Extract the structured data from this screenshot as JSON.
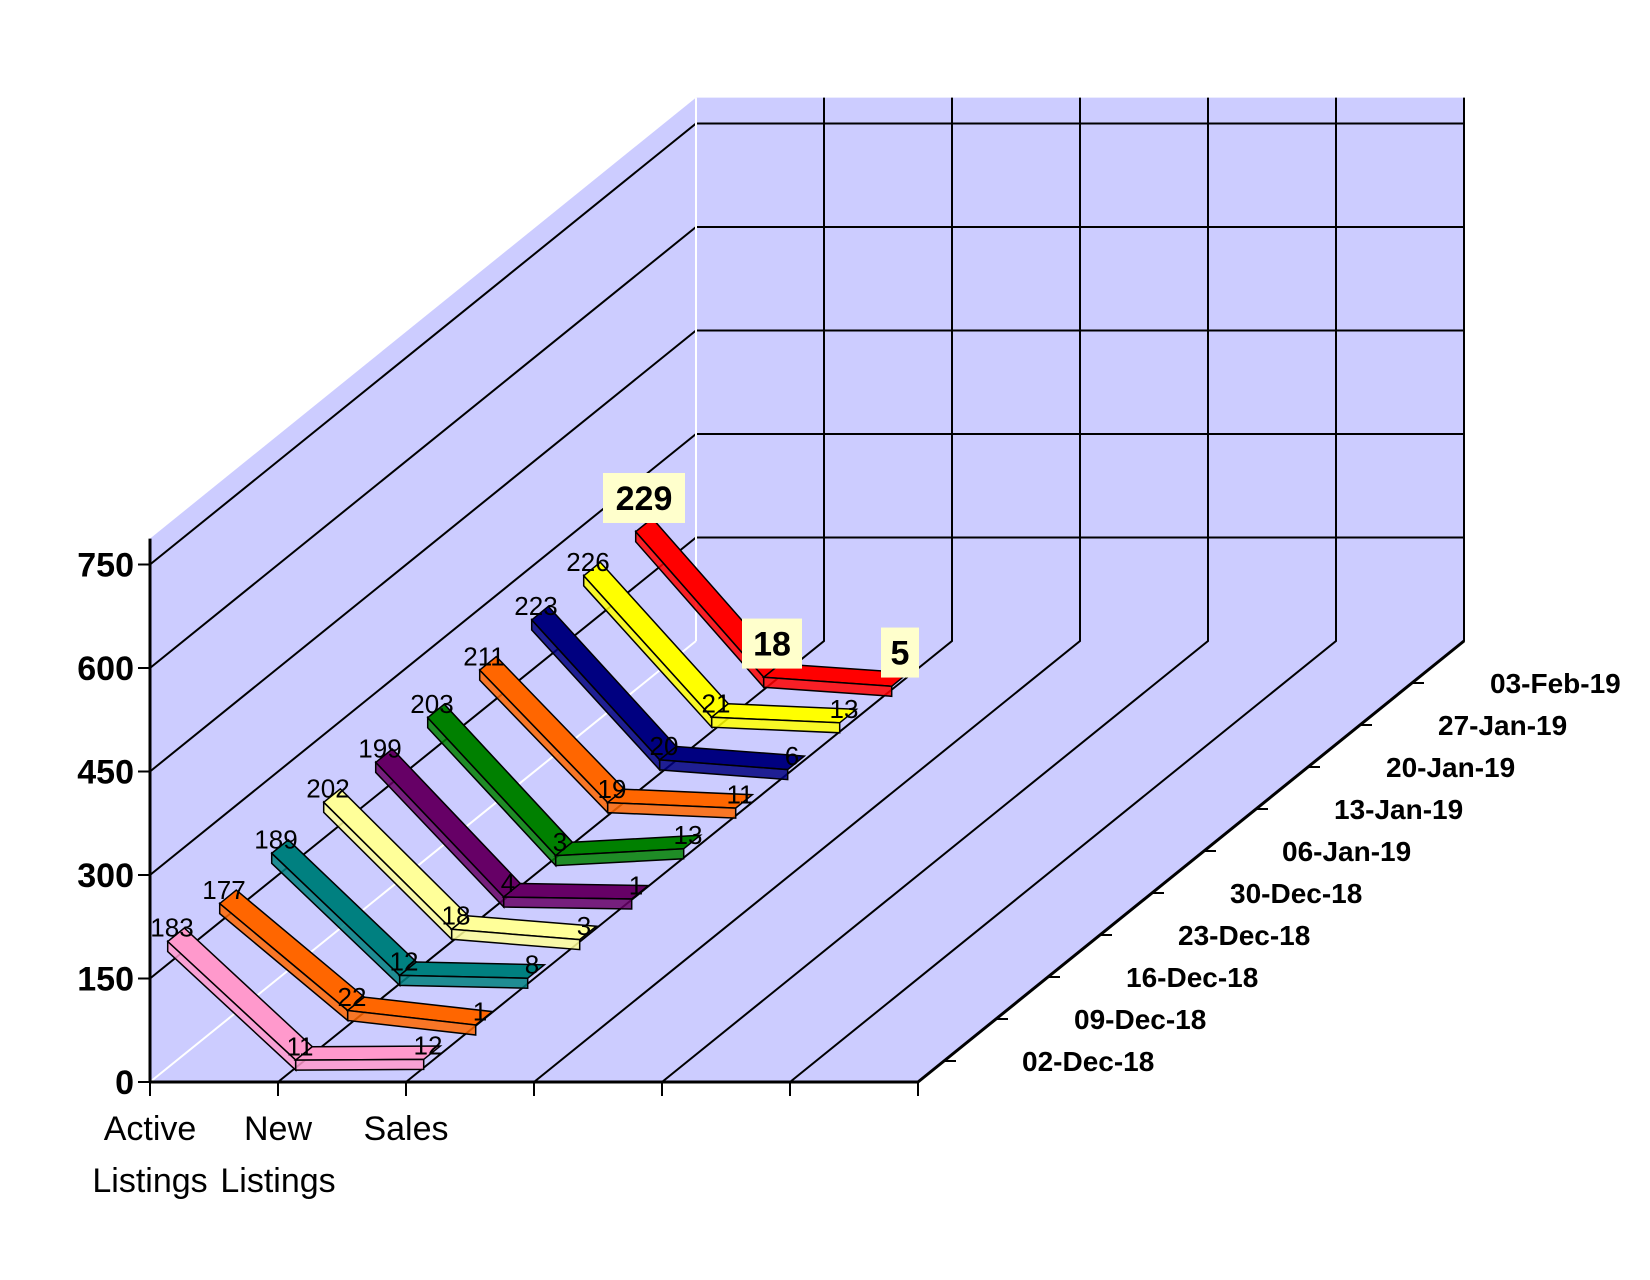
{
  "chart_data": {
    "type": "line",
    "style": "3d-ribbon",
    "categories": [
      "Active Listings",
      "New Listings",
      "Sales"
    ],
    "category_lines": [
      [
        "Active",
        "Listings"
      ],
      [
        "New",
        "Listings"
      ],
      [
        "Sales"
      ]
    ],
    "ylim": [
      0,
      750
    ],
    "yticks": [
      0,
      150,
      300,
      450,
      600,
      750
    ],
    "grid": true,
    "series": [
      {
        "name": "02-Dec-18",
        "values": [
          183,
          11,
          12
        ],
        "color": "#ff99cc"
      },
      {
        "name": "09-Dec-18",
        "values": [
          177,
          22,
          1
        ],
        "color": "#ff6600"
      },
      {
        "name": "16-Dec-18",
        "values": [
          189,
          12,
          8
        ],
        "color": "#008080"
      },
      {
        "name": "23-Dec-18",
        "values": [
          202,
          18,
          3
        ],
        "color": "#ffff99"
      },
      {
        "name": "30-Dec-18",
        "values": [
          199,
          4,
          1
        ],
        "color": "#660066"
      },
      {
        "name": "06-Jan-19",
        "values": [
          203,
          3,
          13
        ],
        "color": "#008000"
      },
      {
        "name": "13-Jan-19",
        "values": [
          211,
          19,
          11
        ],
        "color": "#ff6600"
      },
      {
        "name": "20-Jan-19",
        "values": [
          223,
          20,
          6
        ],
        "color": "#000080"
      },
      {
        "name": "27-Jan-19",
        "values": [
          226,
          21,
          13
        ],
        "color": "#ffff00"
      },
      {
        "name": "03-Feb-19",
        "values": [
          229,
          18,
          5
        ],
        "color": "#ff0000"
      }
    ],
    "highlighted_series": "03-Feb-19"
  },
  "colors": {
    "wall": "#ccccff",
    "floor": "#ccccff",
    "gridline": "#000000",
    "label_box": "#ffffcc"
  }
}
